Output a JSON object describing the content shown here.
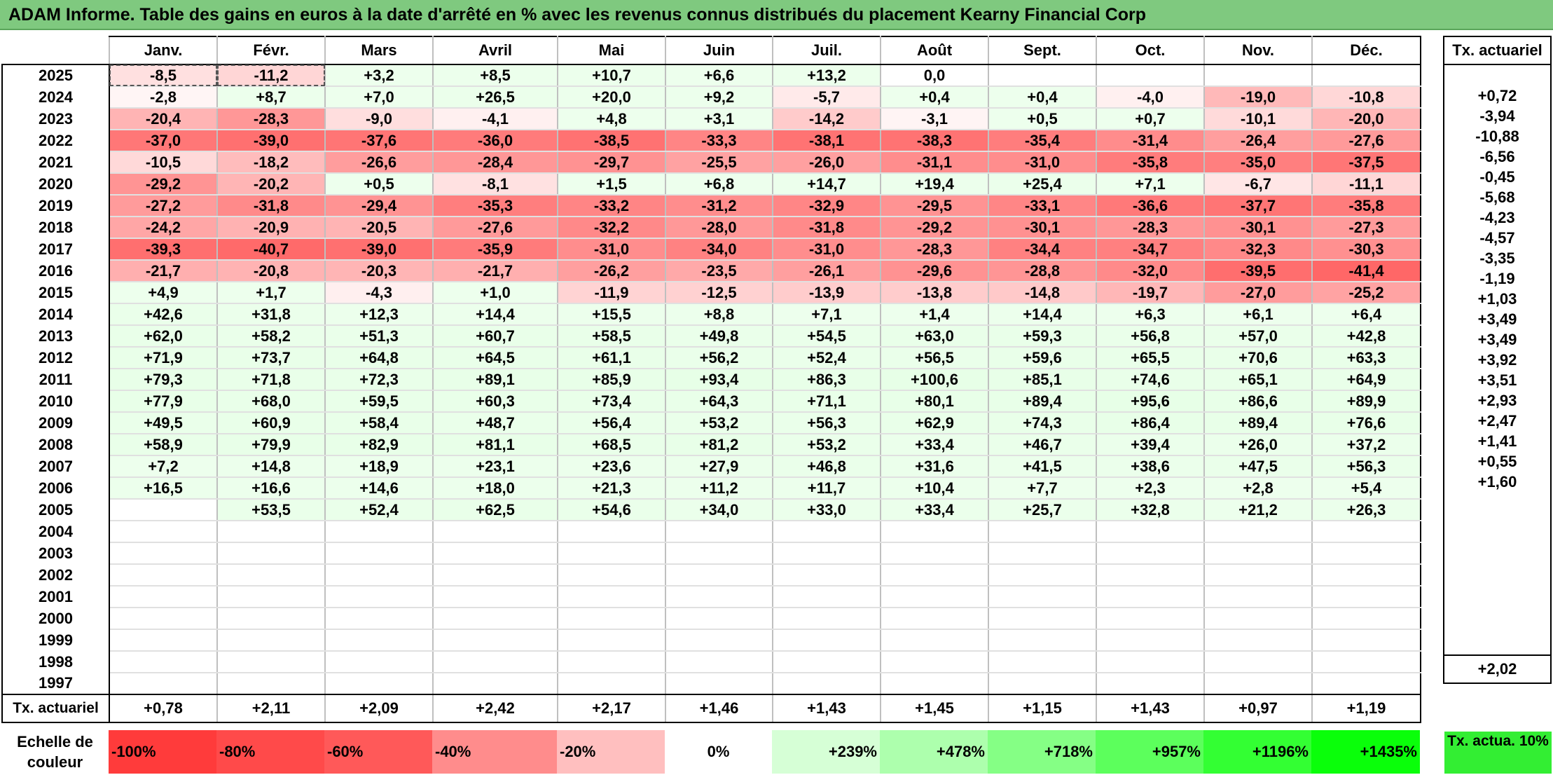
{
  "title": "ADAM Informe. Table des gains en euros à la date d'arrêté en % avec les revenus connus distribués du placement Kearny Financial Corp",
  "months": [
    "Janv.",
    "Févr.",
    "Mars",
    "Avril",
    "Mai",
    "Juin",
    "Juil.",
    "Août",
    "Sept.",
    "Oct.",
    "Nov.",
    "Déc."
  ],
  "tx_header": "Tx. actuariel",
  "rows": [
    {
      "year": "2025",
      "values": [
        "-8,5",
        "-11,2",
        "+3,2",
        "+8,5",
        "+10,7",
        "+6,6",
        "+13,2",
        "0,0",
        "",
        "",
        "",
        ""
      ],
      "tx": ""
    },
    {
      "year": "2024",
      "values": [
        "-2,8",
        "+8,7",
        "+7,0",
        "+26,5",
        "+20,0",
        "+9,2",
        "-5,7",
        "+0,4",
        "+0,4",
        "-4,0",
        "-19,0",
        "-10,8"
      ],
      "tx": "+0,72"
    },
    {
      "year": "2023",
      "values": [
        "-20,4",
        "-28,3",
        "-9,0",
        "-4,1",
        "+4,8",
        "+3,1",
        "-14,2",
        "-3,1",
        "+0,5",
        "+0,7",
        "-10,1",
        "-20,0"
      ],
      "tx": "-3,94"
    },
    {
      "year": "2022",
      "values": [
        "-37,0",
        "-39,0",
        "-37,6",
        "-36,0",
        "-38,5",
        "-33,3",
        "-38,1",
        "-38,3",
        "-35,4",
        "-31,4",
        "-26,4",
        "-27,6"
      ],
      "tx": "-10,88"
    },
    {
      "year": "2021",
      "values": [
        "-10,5",
        "-18,2",
        "-26,6",
        "-28,4",
        "-29,7",
        "-25,5",
        "-26,0",
        "-31,1",
        "-31,0",
        "-35,8",
        "-35,0",
        "-37,5"
      ],
      "tx": "-6,56"
    },
    {
      "year": "2020",
      "values": [
        "-29,2",
        "-20,2",
        "+0,5",
        "-8,1",
        "+1,5",
        "+6,8",
        "+14,7",
        "+19,4",
        "+25,4",
        "+7,1",
        "-6,7",
        "-11,1"
      ],
      "tx": "-0,45"
    },
    {
      "year": "2019",
      "values": [
        "-27,2",
        "-31,8",
        "-29,4",
        "-35,3",
        "-33,2",
        "-31,2",
        "-32,9",
        "-29,5",
        "-33,1",
        "-36,6",
        "-37,7",
        "-35,8"
      ],
      "tx": "-5,68"
    },
    {
      "year": "2018",
      "values": [
        "-24,2",
        "-20,9",
        "-20,5",
        "-27,6",
        "-32,2",
        "-28,0",
        "-31,8",
        "-29,2",
        "-30,1",
        "-28,3",
        "-30,1",
        "-27,3"
      ],
      "tx": "-4,23"
    },
    {
      "year": "2017",
      "values": [
        "-39,3",
        "-40,7",
        "-39,0",
        "-35,9",
        "-31,0",
        "-34,0",
        "-31,0",
        "-28,3",
        "-34,4",
        "-34,7",
        "-32,3",
        "-30,3"
      ],
      "tx": "-4,57"
    },
    {
      "year": "2016",
      "values": [
        "-21,7",
        "-20,8",
        "-20,3",
        "-21,7",
        "-26,2",
        "-23,5",
        "-26,1",
        "-29,6",
        "-28,8",
        "-32,0",
        "-39,5",
        "-41,4"
      ],
      "tx": "-3,35"
    },
    {
      "year": "2015",
      "values": [
        "+4,9",
        "+1,7",
        "-4,3",
        "+1,0",
        "-11,9",
        "-12,5",
        "-13,9",
        "-13,8",
        "-14,8",
        "-19,7",
        "-27,0",
        "-25,2"
      ],
      "tx": "-1,19"
    },
    {
      "year": "2014",
      "values": [
        "+42,6",
        "+31,8",
        "+12,3",
        "+14,4",
        "+15,5",
        "+8,8",
        "+7,1",
        "+1,4",
        "+14,4",
        "+6,3",
        "+6,1",
        "+6,4"
      ],
      "tx": "+1,03"
    },
    {
      "year": "2013",
      "values": [
        "+62,0",
        "+58,2",
        "+51,3",
        "+60,7",
        "+58,5",
        "+49,8",
        "+54,5",
        "+63,0",
        "+59,3",
        "+56,8",
        "+57,0",
        "+42,8"
      ],
      "tx": "+3,49"
    },
    {
      "year": "2012",
      "values": [
        "+71,9",
        "+73,7",
        "+64,8",
        "+64,5",
        "+61,1",
        "+56,2",
        "+52,4",
        "+56,5",
        "+59,6",
        "+65,5",
        "+70,6",
        "+63,3"
      ],
      "tx": "+3,49"
    },
    {
      "year": "2011",
      "values": [
        "+79,3",
        "+71,8",
        "+72,3",
        "+89,1",
        "+85,9",
        "+93,4",
        "+86,3",
        "+100,6",
        "+85,1",
        "+74,6",
        "+65,1",
        "+64,9"
      ],
      "tx": "+3,92"
    },
    {
      "year": "2010",
      "values": [
        "+77,9",
        "+68,0",
        "+59,5",
        "+60,3",
        "+73,4",
        "+64,3",
        "+71,1",
        "+80,1",
        "+89,4",
        "+95,6",
        "+86,6",
        "+89,9"
      ],
      "tx": "+3,51"
    },
    {
      "year": "2009",
      "values": [
        "+49,5",
        "+60,9",
        "+58,4",
        "+48,7",
        "+56,4",
        "+53,2",
        "+56,3",
        "+62,9",
        "+74,3",
        "+86,4",
        "+89,4",
        "+76,6"
      ],
      "tx": "+2,93"
    },
    {
      "year": "2008",
      "values": [
        "+58,9",
        "+79,9",
        "+82,9",
        "+81,1",
        "+68,5",
        "+81,2",
        "+53,2",
        "+33,4",
        "+46,7",
        "+39,4",
        "+26,0",
        "+37,2"
      ],
      "tx": "+2,47"
    },
    {
      "year": "2007",
      "values": [
        "+7,2",
        "+14,8",
        "+18,9",
        "+23,1",
        "+23,6",
        "+27,9",
        "+46,8",
        "+31,6",
        "+41,5",
        "+38,6",
        "+47,5",
        "+56,3"
      ],
      "tx": "+1,41"
    },
    {
      "year": "2006",
      "values": [
        "+16,5",
        "+16,6",
        "+14,6",
        "+18,0",
        "+21,3",
        "+11,2",
        "+11,7",
        "+10,4",
        "+7,7",
        "+2,3",
        "+2,8",
        "+5,4"
      ],
      "tx": "+0,55"
    },
    {
      "year": "2005",
      "values": [
        "",
        "+53,5",
        "+52,4",
        "+62,5",
        "+54,6",
        "+34,0",
        "+33,0",
        "+33,4",
        "+25,7",
        "+32,8",
        "+21,2",
        "+26,3"
      ],
      "tx": "+1,60"
    },
    {
      "year": "2004",
      "values": [
        "",
        "",
        "",
        "",
        "",
        "",
        "",
        "",
        "",
        "",
        "",
        ""
      ],
      "tx": ""
    },
    {
      "year": "2003",
      "values": [
        "",
        "",
        "",
        "",
        "",
        "",
        "",
        "",
        "",
        "",
        "",
        ""
      ],
      "tx": ""
    },
    {
      "year": "2002",
      "values": [
        "",
        "",
        "",
        "",
        "",
        "",
        "",
        "",
        "",
        "",
        "",
        ""
      ],
      "tx": ""
    },
    {
      "year": "2001",
      "values": [
        "",
        "",
        "",
        "",
        "",
        "",
        "",
        "",
        "",
        "",
        "",
        ""
      ],
      "tx": ""
    },
    {
      "year": "2000",
      "values": [
        "",
        "",
        "",
        "",
        "",
        "",
        "",
        "",
        "",
        "",
        "",
        ""
      ],
      "tx": ""
    },
    {
      "year": "1999",
      "values": [
        "",
        "",
        "",
        "",
        "",
        "",
        "",
        "",
        "",
        "",
        "",
        ""
      ],
      "tx": ""
    },
    {
      "year": "1998",
      "values": [
        "",
        "",
        "",
        "",
        "",
        "",
        "",
        "",
        "",
        "",
        "",
        ""
      ],
      "tx": ""
    },
    {
      "year": "1997",
      "values": [
        "",
        "",
        "",
        "",
        "",
        "",
        "",
        "",
        "",
        "",
        "",
        ""
      ],
      "tx": ""
    }
  ],
  "footer": {
    "label": "Tx. actuariel",
    "values": [
      "+0,78",
      "+2,11",
      "+2,09",
      "+2,42",
      "+2,17",
      "+1,46",
      "+1,43",
      "+1,45",
      "+1,15",
      "+1,43",
      "+0,97",
      "+1,19"
    ],
    "tx": "+2,02"
  },
  "scale": {
    "label": "Echelle de couleur",
    "steps": [
      {
        "label": "-100%",
        "color": "#ff3b3b"
      },
      {
        "label": "-80%",
        "color": "#ff4a4a"
      },
      {
        "label": "-60%",
        "color": "#ff5959"
      },
      {
        "label": "-40%",
        "color": "#ff8c8c"
      },
      {
        "label": "-20%",
        "color": "#ffbfbf"
      },
      {
        "label": "0%",
        "color": "#ffffff"
      },
      {
        "label": "+239%",
        "color": "#d6ffd6"
      },
      {
        "label": "+478%",
        "color": "#adffad"
      },
      {
        "label": "+718%",
        "color": "#85ff85"
      },
      {
        "label": "+957%",
        "color": "#5cff5c"
      },
      {
        "label": "+1196%",
        "color": "#33ff33"
      },
      {
        "label": "+1435%",
        "color": "#0aff0a"
      }
    ],
    "tx_label": "Tx. actua. 10%",
    "tx_color": "#33ee33"
  },
  "colors": {
    "title_bg": "#7fc97f",
    "negative_max": "#ff5c5c",
    "positive_tint": "#f2fff2"
  }
}
